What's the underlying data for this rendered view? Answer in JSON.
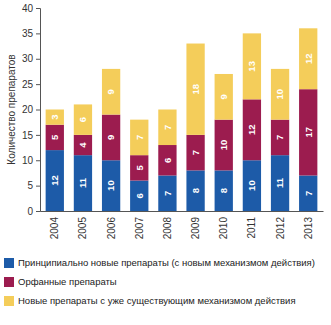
{
  "chart_data": {
    "type": "bar",
    "stacked": true,
    "data_labels": true,
    "grid": false,
    "legend": "bottom",
    "y_label": "Количество препаратов",
    "categories": [
      "2004",
      "2005",
      "2006",
      "2007",
      "2008",
      "2009",
      "2010",
      "2011",
      "2012",
      "2013"
    ],
    "ylim": [
      0,
      40
    ],
    "yticks": [
      0,
      5,
      10,
      15,
      20,
      25,
      30,
      35,
      40
    ],
    "series": [
      {
        "name": "Принципиально новые препараты (с новым механизмом действия)",
        "color": "#1d5ba8",
        "values": [
          12,
          11,
          10,
          6,
          7,
          8,
          8,
          10,
          11,
          7
        ]
      },
      {
        "name": "Орфанные препараты",
        "color": "#9c1c4f",
        "values": [
          5,
          4,
          9,
          5,
          6,
          7,
          10,
          12,
          7,
          17
        ]
      },
      {
        "name": "Новые препараты с уже существующим механизмом действия",
        "color": "#f4cd5a",
        "values": [
          3,
          6,
          9,
          7,
          7,
          18,
          9,
          13,
          10,
          12
        ]
      }
    ]
  }
}
